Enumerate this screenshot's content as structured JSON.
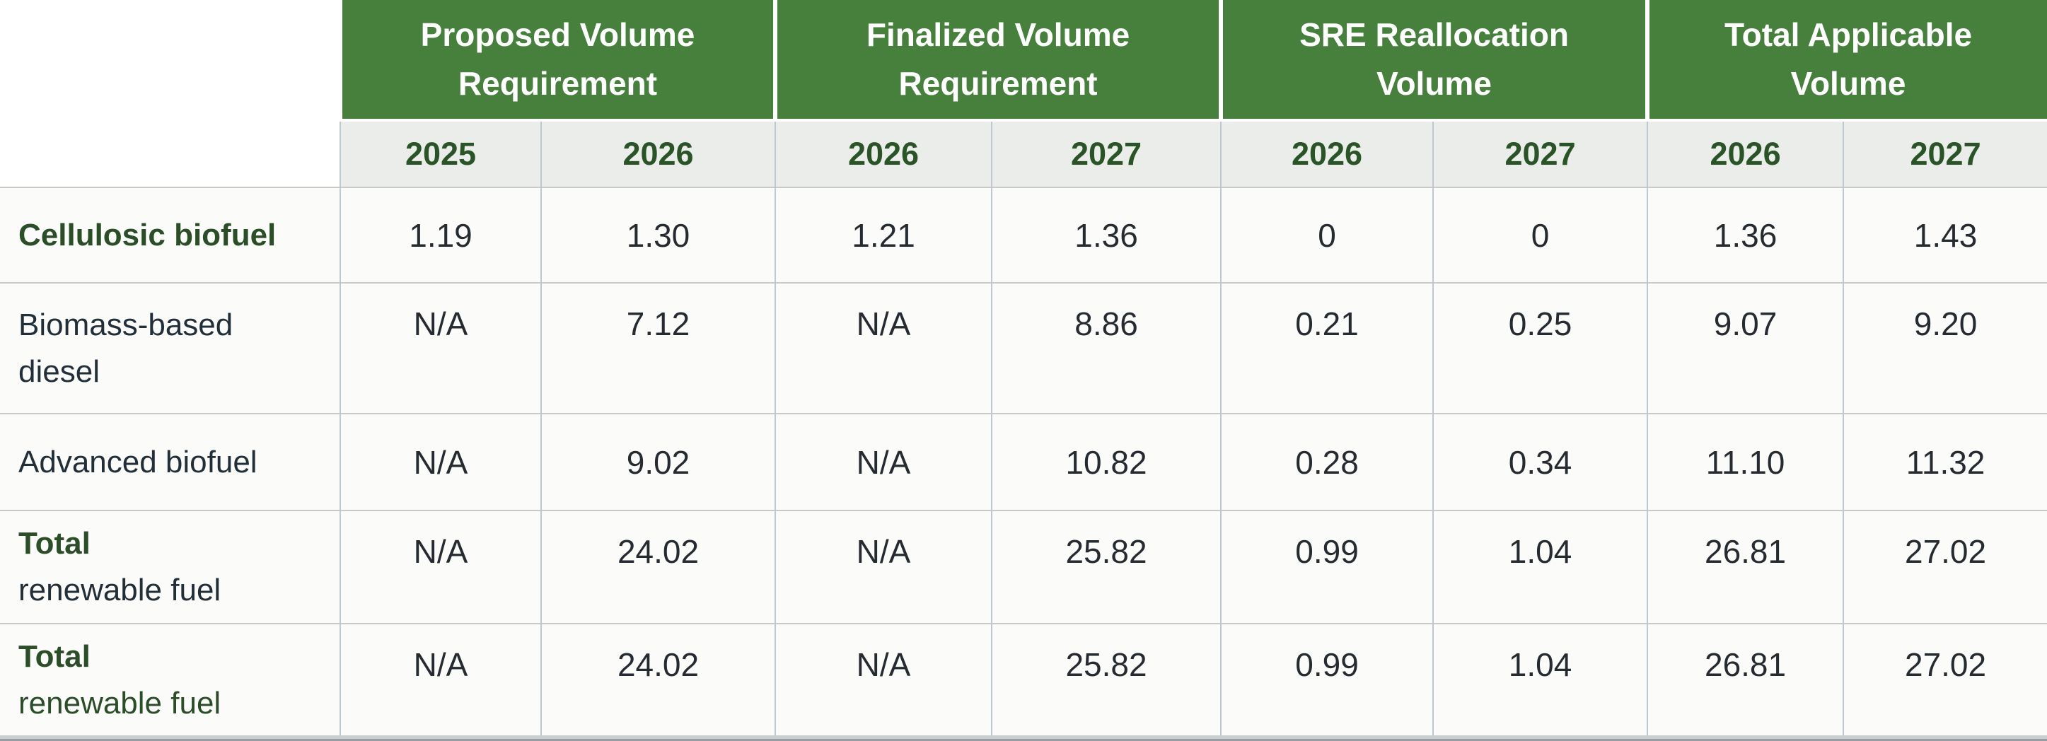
{
  "colors": {
    "page_bg": "#ffffff",
    "header_green": "#46803c",
    "header_text": "#ffffff",
    "year_row_bg": "#eaede9",
    "year_text": "#2a5327",
    "row_bg": "#fbfcfa",
    "label_green": "#2b4e29",
    "label_dark": "#222e38",
    "value_text": "#262b31",
    "grid_vertical": "#bfc8d0",
    "grid_horizontal": "#c7cbc6",
    "bottom_strip": "#c9ced1",
    "bottom_edge": "#969ea3"
  },
  "chart_data": {
    "type": "table",
    "corner_label": "",
    "column_groups": [
      {
        "label": "Proposed Volume Requirement",
        "years": [
          "2025",
          "2026"
        ]
      },
      {
        "label": "Finalized Volume Requirement",
        "years": [
          "2026",
          "2027"
        ]
      },
      {
        "label": "SRE Reallocation Volume",
        "years": [
          "2026",
          "2027"
        ]
      },
      {
        "label": "Total Applicable Volume",
        "years": [
          "2026",
          "2027"
        ]
      }
    ],
    "rows": [
      {
        "label": "Cellulosic biofuel",
        "label_lines": [
          {
            "text": "Cellulosic biofuel",
            "style": "green-bold"
          }
        ],
        "values": [
          "1.19",
          "1.30",
          "1.21",
          "1.36",
          "0",
          "0",
          "1.36",
          "1.43"
        ]
      },
      {
        "label": "Biomass-based diesel",
        "label_lines": [
          {
            "text": "Biomass-based",
            "style": "dark"
          },
          {
            "text": "diesel",
            "style": "dark"
          }
        ],
        "values": [
          "N/A",
          "7.12",
          "N/A",
          "8.86",
          "0.21",
          "0.25",
          "9.07",
          "9.20"
        ]
      },
      {
        "label": "Advanced biofuel",
        "label_lines": [
          {
            "text": "Advanced biofuel",
            "style": "dark"
          }
        ],
        "values": [
          "N/A",
          "9.02",
          "N/A",
          "10.82",
          "0.28",
          "0.34",
          "11.10",
          "11.32"
        ]
      },
      {
        "label": "Total renewable fuel",
        "label_lines": [
          {
            "text": "Total",
            "style": "green-bold"
          },
          {
            "text": "renewable fuel",
            "style": "dark"
          }
        ],
        "values": [
          "N/A",
          "24.02",
          "N/A",
          "25.82",
          "0.99",
          "1.04",
          "26.81",
          "27.02"
        ]
      },
      {
        "label": "Total renewable fuel",
        "label_lines": [
          {
            "text": "Total",
            "style": "green-bold"
          },
          {
            "text": "renewable fuel",
            "style": "green"
          }
        ],
        "values": [
          "N/A",
          "24.02",
          "N/A",
          "25.82",
          "0.99",
          "1.04",
          "26.81",
          "27.02"
        ]
      }
    ]
  }
}
